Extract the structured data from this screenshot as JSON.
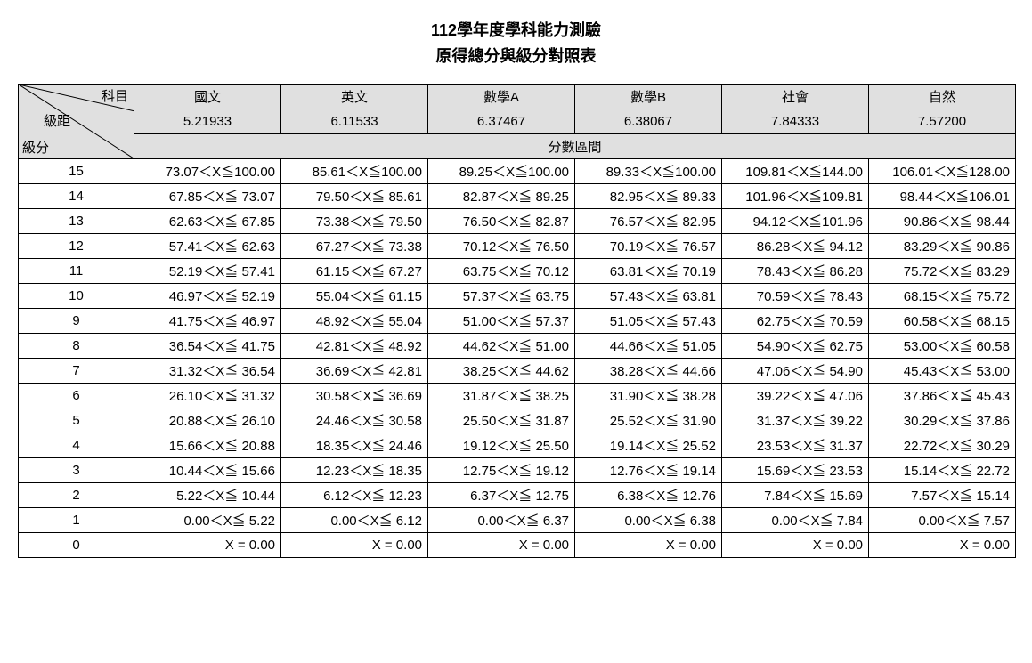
{
  "title_line1": "112學年度學科能力測驗",
  "title_line2": "原得總分與級分對照表",
  "corner": {
    "subject": "科目",
    "step": "級距",
    "grade": "級分"
  },
  "subjects": [
    "國文",
    "英文",
    "數學A",
    "數學B",
    "社會",
    "自然"
  ],
  "steps": [
    "5.21933",
    "6.11533",
    "6.37467",
    "6.38067",
    "7.84333",
    "7.57200"
  ],
  "interval_label": "分數區間",
  "grades": [
    "15",
    "14",
    "13",
    "12",
    "11",
    "10",
    "9",
    "8",
    "7",
    "6",
    "5",
    "4",
    "3",
    "2",
    "1",
    "0"
  ],
  "ranges": [
    [
      "73.07＜X≦100.00",
      "85.61＜X≦100.00",
      "89.25＜X≦100.00",
      "89.33＜X≦100.00",
      "109.81＜X≦144.00",
      "106.01＜X≦128.00"
    ],
    [
      "67.85＜X≦ 73.07",
      "79.50＜X≦ 85.61",
      "82.87＜X≦ 89.25",
      "82.95＜X≦ 89.33",
      "101.96＜X≦109.81",
      "98.44＜X≦106.01"
    ],
    [
      "62.63＜X≦ 67.85",
      "73.38＜X≦ 79.50",
      "76.50＜X≦ 82.87",
      "76.57＜X≦ 82.95",
      "94.12＜X≦101.96",
      "90.86＜X≦ 98.44"
    ],
    [
      "57.41＜X≦ 62.63",
      "67.27＜X≦ 73.38",
      "70.12＜X≦ 76.50",
      "70.19＜X≦ 76.57",
      "86.28＜X≦ 94.12",
      "83.29＜X≦ 90.86"
    ],
    [
      "52.19＜X≦ 57.41",
      "61.15＜X≦ 67.27",
      "63.75＜X≦ 70.12",
      "63.81＜X≦ 70.19",
      "78.43＜X≦ 86.28",
      "75.72＜X≦ 83.29"
    ],
    [
      "46.97＜X≦ 52.19",
      "55.04＜X≦ 61.15",
      "57.37＜X≦ 63.75",
      "57.43＜X≦ 63.81",
      "70.59＜X≦ 78.43",
      "68.15＜X≦ 75.72"
    ],
    [
      "41.75＜X≦ 46.97",
      "48.92＜X≦ 55.04",
      "51.00＜X≦ 57.37",
      "51.05＜X≦ 57.43",
      "62.75＜X≦ 70.59",
      "60.58＜X≦ 68.15"
    ],
    [
      "36.54＜X≦ 41.75",
      "42.81＜X≦ 48.92",
      "44.62＜X≦ 51.00",
      "44.66＜X≦ 51.05",
      "54.90＜X≦ 62.75",
      "53.00＜X≦ 60.58"
    ],
    [
      "31.32＜X≦ 36.54",
      "36.69＜X≦ 42.81",
      "38.25＜X≦ 44.62",
      "38.28＜X≦ 44.66",
      "47.06＜X≦ 54.90",
      "45.43＜X≦ 53.00"
    ],
    [
      "26.10＜X≦ 31.32",
      "30.58＜X≦ 36.69",
      "31.87＜X≦ 38.25",
      "31.90＜X≦ 38.28",
      "39.22＜X≦ 47.06",
      "37.86＜X≦ 45.43"
    ],
    [
      "20.88＜X≦ 26.10",
      "24.46＜X≦ 30.58",
      "25.50＜X≦ 31.87",
      "25.52＜X≦ 31.90",
      "31.37＜X≦ 39.22",
      "30.29＜X≦ 37.86"
    ],
    [
      "15.66＜X≦ 20.88",
      "18.35＜X≦ 24.46",
      "19.12＜X≦ 25.50",
      "19.14＜X≦ 25.52",
      "23.53＜X≦ 31.37",
      "22.72＜X≦ 30.29"
    ],
    [
      "10.44＜X≦ 15.66",
      "12.23＜X≦ 18.35",
      "12.75＜X≦ 19.12",
      "12.76＜X≦ 19.14",
      "15.69＜X≦ 23.53",
      "15.14＜X≦ 22.72"
    ],
    [
      "5.22＜X≦ 10.44",
      "6.12＜X≦ 12.23",
      "6.37＜X≦ 12.75",
      "6.38＜X≦ 12.76",
      "7.84＜X≦ 15.69",
      "7.57＜X≦ 15.14"
    ],
    [
      "0.00＜X≦  5.22",
      "0.00＜X≦  6.12",
      "0.00＜X≦  6.37",
      "0.00＜X≦  6.38",
      "0.00＜X≦  7.84",
      "0.00＜X≦  7.57"
    ],
    [
      "X =  0.00",
      "X =  0.00",
      "X =  0.00",
      "X =  0.00",
      "X =  0.00",
      "X =  0.00"
    ]
  ],
  "style": {
    "header_bg": "#e0e0e0",
    "border_color": "#000000",
    "font_size_body": 15,
    "font_size_title": 18
  }
}
